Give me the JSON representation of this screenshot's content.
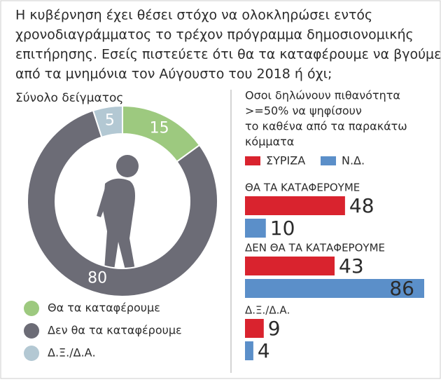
{
  "title": [
    "Η κυβέρνηση έχει θέσει στόχο να ολοκληρώσει εντός",
    "χρονοδιαγράμματος το τρέχον πρόγραμμα δημοσιονομικής",
    "επιτήρησης. Εσείς πιστεύετε ότι θα τα καταφέρουμε να βγούμε",
    "από τα μνημόνια τον Αύγουστο του 2018 ή όχι;"
  ],
  "chart_data": [
    {
      "type": "donut",
      "title": "Σύνολο δείγματος",
      "categories": [
        "Θα τα καταφέρουμε",
        "Δεν θα τα καταφέρουμε",
        "Δ.Ξ./Δ.Α."
      ],
      "values": [
        15,
        80,
        5
      ],
      "colors": [
        "#9dc97f",
        "#6c6c76",
        "#b3c8d3"
      ]
    },
    {
      "type": "hbar",
      "title": [
        "Οσοι δηλώνουν πιθανότητα",
        ">=50% να ψηφίσουν",
        "το καθένα από τα παρακάτω",
        "κόμματα"
      ],
      "categories": [
        "ΘΑ ΤΑ ΚΑΤΑΦΕΡΟΥΜΕ",
        "ΔΕΝ ΘΑ ΤΑ ΚΑΤΑΦΕΡΟΥΜΕ",
        "Δ.Ξ./Δ.Α."
      ],
      "series": [
        {
          "name": "ΣΥΡΙΖΑ",
          "color": "#d9232e",
          "values": [
            48,
            43,
            9
          ]
        },
        {
          "name": "Ν.Δ.",
          "color": "#5b8fc9",
          "values": [
            10,
            86,
            4
          ]
        }
      ]
    }
  ]
}
